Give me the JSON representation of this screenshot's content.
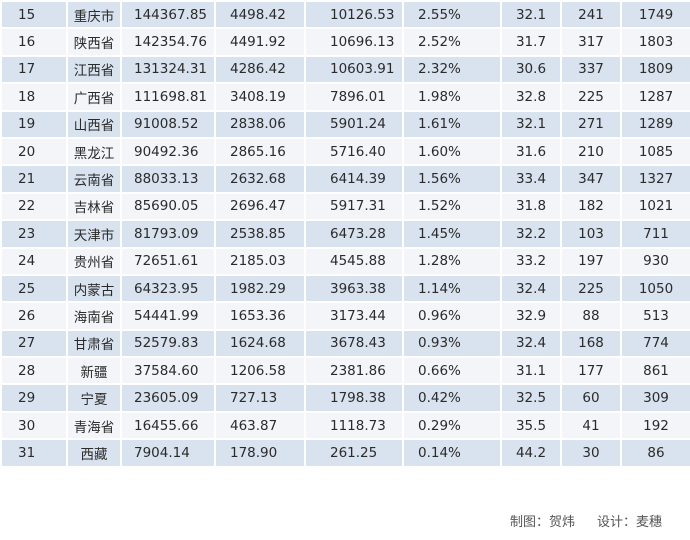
{
  "rows": [
    {
      "rank": "15",
      "name": "重庆市",
      "a": "144367.85",
      "b": "4498.42",
      "c": "10126.53",
      "d": "2.55%",
      "e": "32.1",
      "f": "241",
      "g": "1749"
    },
    {
      "rank": "16",
      "name": "陕西省",
      "a": "142354.76",
      "b": "4491.92",
      "c": "10696.13",
      "d": "2.52%",
      "e": "31.7",
      "f": "317",
      "g": "1803"
    },
    {
      "rank": "17",
      "name": "江西省",
      "a": "131324.31",
      "b": "4286.42",
      "c": "10603.91",
      "d": "2.32%",
      "e": "30.6",
      "f": "337",
      "g": "1809"
    },
    {
      "rank": "18",
      "name": "广西省",
      "a": "111698.81",
      "b": "3408.19",
      "c": "7896.01",
      "d": "1.98%",
      "e": "32.8",
      "f": "225",
      "g": "1287"
    },
    {
      "rank": "19",
      "name": "山西省",
      "a": "91008.52",
      "b": "2838.06",
      "c": "5901.24",
      "d": "1.61%",
      "e": "32.1",
      "f": "271",
      "g": "1289"
    },
    {
      "rank": "20",
      "name": "黑龙江",
      "a": "90492.36",
      "b": "2865.16",
      "c": "5716.40",
      "d": "1.60%",
      "e": "31.6",
      "f": "210",
      "g": "1085"
    },
    {
      "rank": "21",
      "name": "云南省",
      "a": "88033.13",
      "b": "2632.68",
      "c": "6414.39",
      "d": "1.56%",
      "e": "33.4",
      "f": "347",
      "g": "1327"
    },
    {
      "rank": "22",
      "name": "吉林省",
      "a": "85690.05",
      "b": "2696.47",
      "c": "5917.31",
      "d": "1.52%",
      "e": "31.8",
      "f": "182",
      "g": "1021"
    },
    {
      "rank": "23",
      "name": "天津市",
      "a": "81793.09",
      "b": "2538.85",
      "c": "6473.28",
      "d": "1.45%",
      "e": "32.2",
      "f": "103",
      "g": "711"
    },
    {
      "rank": "24",
      "name": "贵州省",
      "a": "72651.61",
      "b": "2185.03",
      "c": "4545.88",
      "d": "1.28%",
      "e": "33.2",
      "f": "197",
      "g": "930"
    },
    {
      "rank": "25",
      "name": "内蒙古",
      "a": "64323.95",
      "b": "1982.29",
      "c": "3963.38",
      "d": "1.14%",
      "e": "32.4",
      "f": "225",
      "g": "1050"
    },
    {
      "rank": "26",
      "name": "海南省",
      "a": "54441.99",
      "b": "1653.36",
      "c": "3173.44",
      "d": "0.96%",
      "e": "32.9",
      "f": "88",
      "g": "513"
    },
    {
      "rank": "27",
      "name": "甘肃省",
      "a": "52579.83",
      "b": "1624.68",
      "c": "3678.43",
      "d": "0.93%",
      "e": "32.4",
      "f": "168",
      "g": "774"
    },
    {
      "rank": "28",
      "name": "新疆",
      "a": "37584.60",
      "b": "1206.58",
      "c": "2381.86",
      "d": "0.66%",
      "e": "31.1",
      "f": "177",
      "g": "861"
    },
    {
      "rank": "29",
      "name": "宁夏",
      "a": "23605.09",
      "b": "727.13",
      "c": "1798.38",
      "d": "0.42%",
      "e": "32.5",
      "f": "60",
      "g": "309"
    },
    {
      "rank": "30",
      "name": "青海省",
      "a": "16455.66",
      "b": "463.87",
      "c": "1118.73",
      "d": "0.29%",
      "e": "35.5",
      "f": "41",
      "g": "192"
    },
    {
      "rank": "31",
      "name": "西藏",
      "a": "7904.14",
      "b": "178.90",
      "c": "261.25",
      "d": "0.14%",
      "e": "44.2",
      "f": "30",
      "g": "86"
    }
  ],
  "footer": {
    "chart_credit": "制图：贺炜",
    "design_credit": "设计：麦穗"
  }
}
